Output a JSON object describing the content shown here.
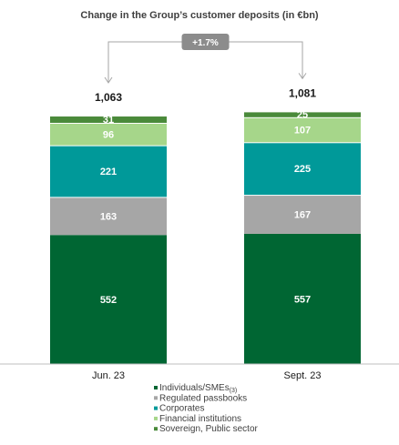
{
  "chart_data": {
    "type": "bar",
    "stacked": true,
    "title": "Change in the Group’s customer deposits (in €bn)",
    "categories": [
      "Jun. 23",
      "Sept. 23"
    ],
    "totals": [
      "1,063",
      "1,081"
    ],
    "change_label": "+1.7%",
    "series": [
      {
        "name": "Individuals/SMEs",
        "footnote": "(3)",
        "color": "#006633",
        "values": [
          552,
          557
        ]
      },
      {
        "name": "Regulated passbooks",
        "color": "#a6a6a6",
        "values": [
          163,
          167
        ]
      },
      {
        "name": "Corporates",
        "color": "#009999",
        "values": [
          221,
          225
        ]
      },
      {
        "name": "Financial institutions",
        "color": "#a6d68a",
        "values": [
          96,
          107
        ]
      },
      {
        "name": "Sovereign, Public sector",
        "color": "#4a8a3a",
        "values": [
          31,
          25
        ]
      }
    ],
    "legend_position": "bottom",
    "grid": false
  }
}
